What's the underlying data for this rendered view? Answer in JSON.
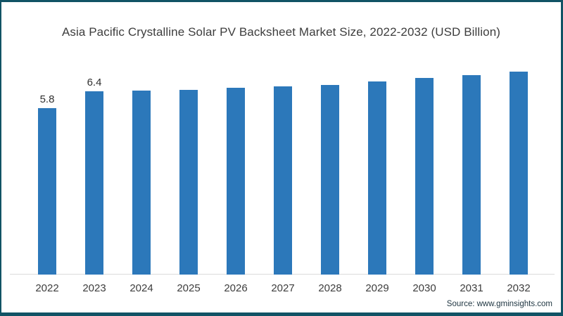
{
  "window": {
    "border_color": "#115365",
    "background_color": "#ffffff"
  },
  "chart_data": {
    "type": "bar",
    "title": "Asia Pacific Crystalline Solar PV Backsheet Market Size, 2022-2032 (USD Billion)",
    "xlabel": "",
    "ylabel": "",
    "categories": [
      "2022",
      "2023",
      "2024",
      "2025",
      "2026",
      "2027",
      "2028",
      "2029",
      "2030",
      "2031",
      "2032"
    ],
    "values": [
      5.8,
      6.4,
      6.42,
      6.45,
      6.52,
      6.58,
      6.62,
      6.73,
      6.86,
      6.95,
      7.08
    ],
    "data_labels": [
      "5.8",
      "6.4",
      "",
      "",
      "",
      "",
      "",
      "",
      "",
      "",
      ""
    ],
    "ylim": [
      0,
      8
    ],
    "grid": false,
    "legend": "none",
    "bar_color": "#2c78ba",
    "axis_line_color": "#dcdcdc"
  },
  "footer": {
    "source_label": "Source: www.gminsights.com"
  }
}
